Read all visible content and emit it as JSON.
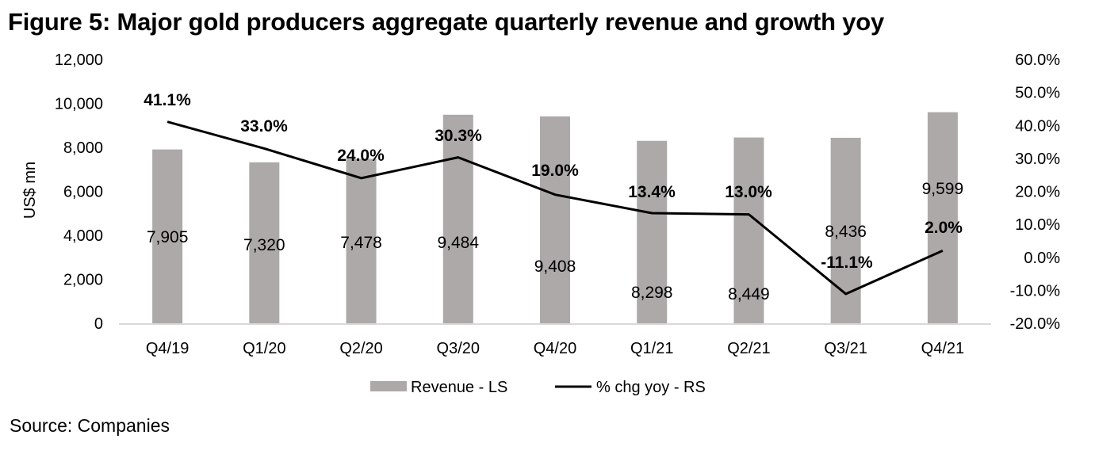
{
  "title": "Figure 5: Major gold producers aggregate quarterly revenue and growth yoy",
  "source": "Source: Companies",
  "chart_data": {
    "type": "bar+line",
    "title": "Figure 5: Major gold producers aggregate quarterly revenue and growth yoy",
    "categories": [
      "Q4/19",
      "Q1/20",
      "Q2/20",
      "Q3/20",
      "Q4/20",
      "Q1/21",
      "Q2/21",
      "Q3/21",
      "Q4/21"
    ],
    "series": [
      {
        "name": "Revenue - LS",
        "type": "bar",
        "axis": "left",
        "color": "#ADA9A9",
        "values": [
          7905,
          7320,
          7478,
          9484,
          9408,
          8298,
          8449,
          8436,
          9599
        ],
        "labels": [
          "7,905",
          "7,320",
          "7,478",
          "9,484",
          "9,408",
          "8,298",
          "8,449",
          "8,436",
          "9,599"
        ]
      },
      {
        "name": "% chg yoy - RS",
        "type": "line",
        "axis": "right",
        "color": "#000000",
        "values": [
          41.1,
          33.0,
          24.0,
          30.3,
          19.0,
          13.4,
          13.0,
          -11.1,
          2.0
        ],
        "labels": [
          "41.1%",
          "33.0%",
          "24.0%",
          "30.3%",
          "19.0%",
          "13.4%",
          "13.0%",
          "-11.1%",
          "2.0%"
        ]
      }
    ],
    "ylabel": "US$ mn",
    "xlabel": "",
    "ylim": [
      0,
      12000
    ],
    "y_ticks": [
      "0",
      "2,000",
      "4,000",
      "6,000",
      "8,000",
      "10,000",
      "12,000"
    ],
    "y_tick_values": [
      0,
      2000,
      4000,
      6000,
      8000,
      10000,
      12000
    ],
    "y2lim": [
      -20,
      60
    ],
    "y2_ticks": [
      "-20.0%",
      "-10.0%",
      "0.0%",
      "10.0%",
      "20.0%",
      "30.0%",
      "40.0%",
      "50.0%",
      "60.0%"
    ],
    "y2_tick_values": [
      -20,
      -10,
      0,
      10,
      20,
      30,
      40,
      50,
      60
    ],
    "grid": false,
    "legend": {
      "position": "bottom",
      "entries": [
        "Revenue - LS",
        "% chg yoy - RS"
      ]
    }
  }
}
